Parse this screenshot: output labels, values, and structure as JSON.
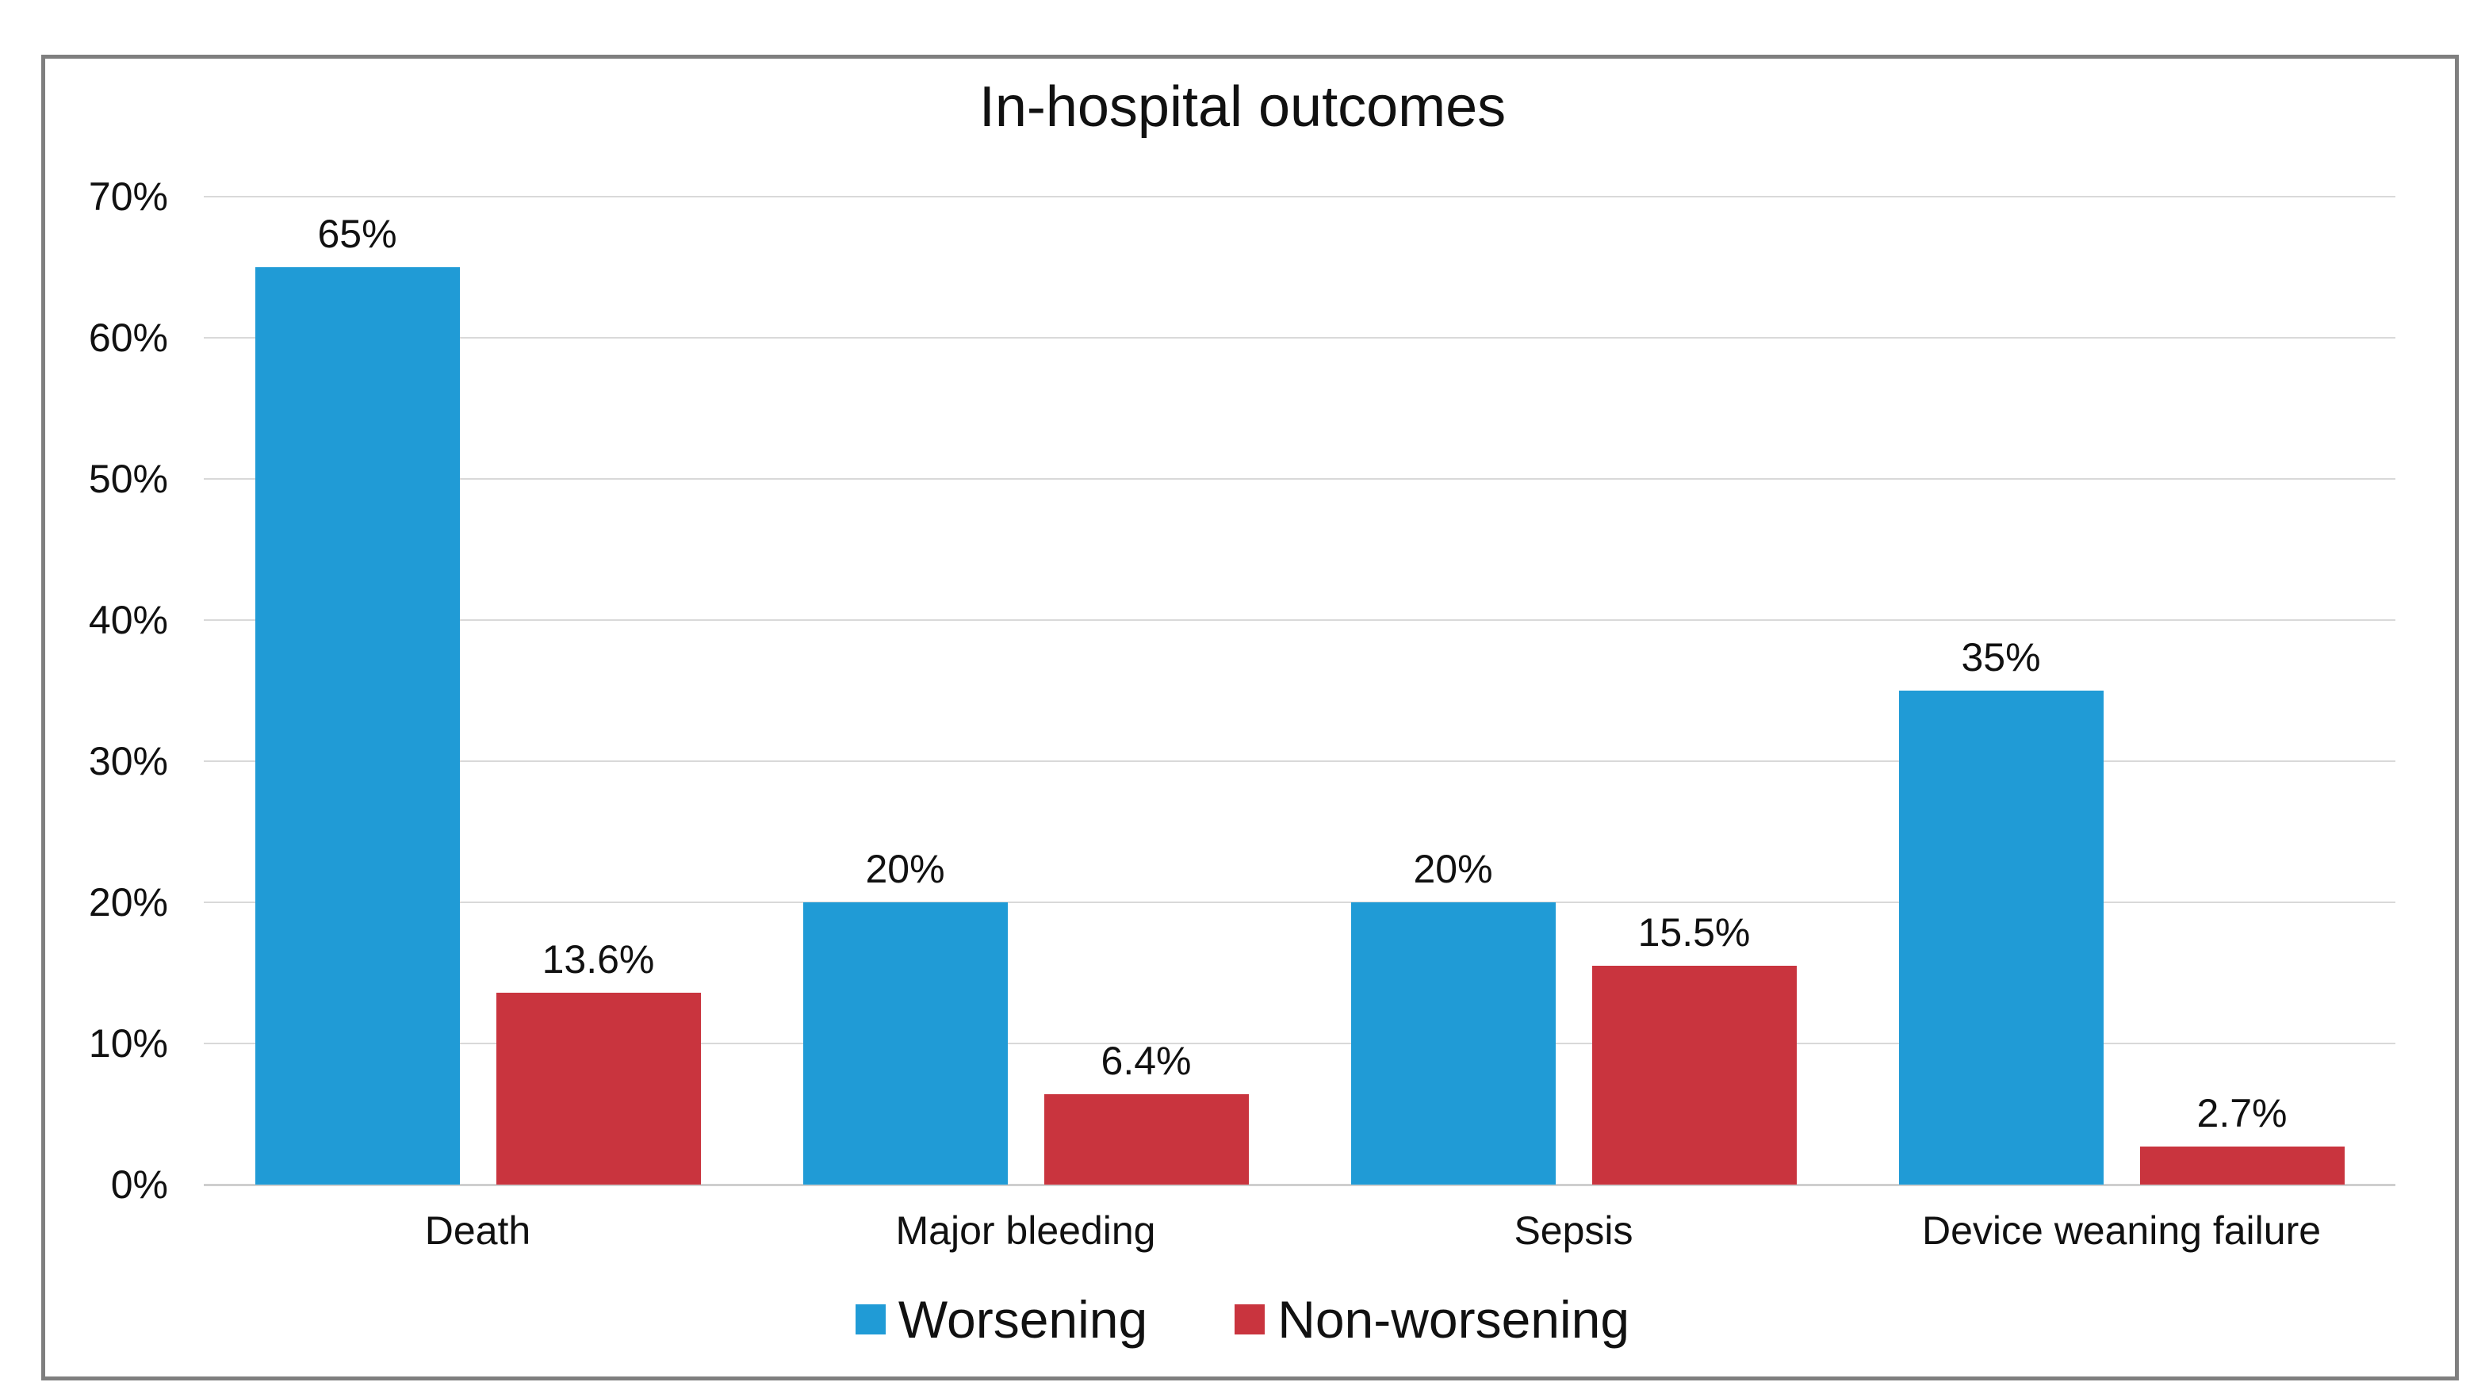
{
  "chart_data": {
    "type": "bar",
    "title": "In-hospital outcomes",
    "categories": [
      "Death",
      "Major bleeding",
      "Sepsis",
      "Device weaning failure"
    ],
    "series": [
      {
        "name": "Worsening",
        "color": "#209bd6",
        "values": [
          65,
          20,
          20,
          35
        ],
        "labels": [
          "65%",
          "20%",
          "20%",
          "35%"
        ]
      },
      {
        "name": "Non-worsening",
        "color": "#c9343e",
        "values": [
          13.6,
          6.4,
          15.5,
          2.7
        ],
        "labels": [
          "13.6%",
          "6.4%",
          "15.5%",
          "2.7%"
        ]
      }
    ],
    "xlabel": "",
    "ylabel": "",
    "ylim": [
      0,
      70
    ],
    "ytick_step": 10,
    "yticks": [
      "0%",
      "10%",
      "20%",
      "30%",
      "40%",
      "50%",
      "60%",
      "70%"
    ],
    "grid": true,
    "legend_position": "bottom"
  }
}
